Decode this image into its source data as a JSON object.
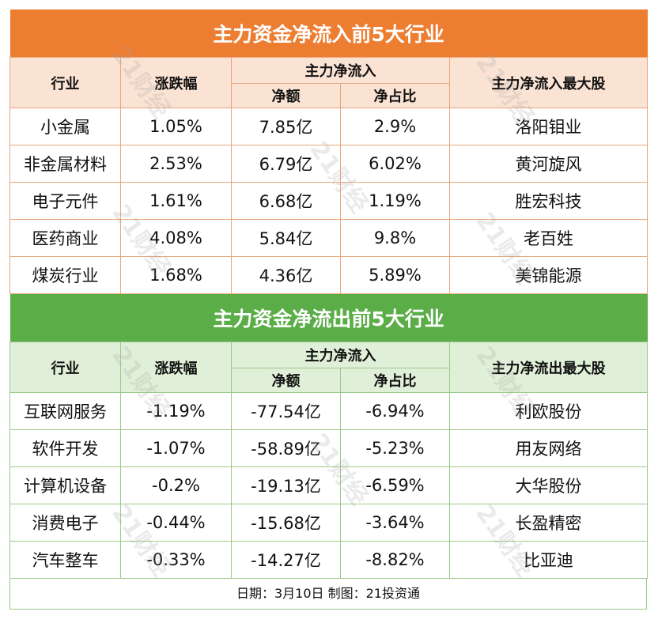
{
  "inflow": {
    "title": "主力资金净流入前5大行业",
    "headers": {
      "industry": "行业",
      "change": "涨跌幅",
      "group": "主力净流入",
      "amount": "净额",
      "ratio": "净占比",
      "top_stock": "主力净流入最大股"
    },
    "rows": [
      {
        "industry": "小金属",
        "change": "1.05%",
        "amount": "7.85亿",
        "ratio": "2.9%",
        "top_stock": "洛阳钼业"
      },
      {
        "industry": "非金属材料",
        "change": "2.53%",
        "amount": "6.79亿",
        "ratio": "6.02%",
        "top_stock": "黄河旋风"
      },
      {
        "industry": "电子元件",
        "change": "1.61%",
        "amount": "6.68亿",
        "ratio": "1.19%",
        "top_stock": "胜宏科技"
      },
      {
        "industry": "医药商业",
        "change": "4.08%",
        "amount": "5.84亿",
        "ratio": "9.8%",
        "top_stock": "老百姓"
      },
      {
        "industry": "煤炭行业",
        "change": "1.68%",
        "amount": "4.36亿",
        "ratio": "5.89%",
        "top_stock": "美锦能源"
      }
    ]
  },
  "outflow": {
    "title": "主力资金净流出前5大行业",
    "headers": {
      "industry": "行业",
      "change": "涨跌幅",
      "group": "主力净流入",
      "amount": "净额",
      "ratio": "净占比",
      "top_stock": "主力净流出最大股"
    },
    "rows": [
      {
        "industry": "互联网服务",
        "change": "-1.19%",
        "amount": "-77.54亿",
        "ratio": "-6.94%",
        "top_stock": "利欧股份"
      },
      {
        "industry": "软件开发",
        "change": "-1.07%",
        "amount": "-58.89亿",
        "ratio": "-5.23%",
        "top_stock": "用友网络"
      },
      {
        "industry": "计算机设备",
        "change": "-0.2%",
        "amount": "-19.13亿",
        "ratio": "-6.59%",
        "top_stock": "大华股份"
      },
      {
        "industry": "消费电子",
        "change": "-0.44%",
        "amount": "-15.68亿",
        "ratio": "-3.64%",
        "top_stock": "长盈精密"
      },
      {
        "industry": "汽车整车",
        "change": "-0.33%",
        "amount": "-14.27亿",
        "ratio": "-8.82%",
        "top_stock": "比亚迪"
      }
    ]
  },
  "footer": "日期：3月10日  制图：21投资通",
  "watermark": "21财经",
  "colors": {
    "inflow_accent": "#ed7d31",
    "outflow_accent": "#5aad47"
  }
}
